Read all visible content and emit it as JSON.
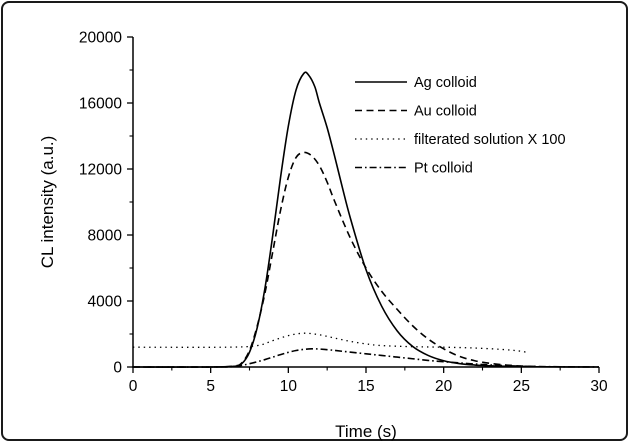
{
  "chart_data": {
    "type": "line",
    "title": "",
    "xlabel": "Time (s)",
    "ylabel": "CL intensity (a.u.)",
    "xlim": [
      0,
      30
    ],
    "ylim": [
      0,
      20000
    ],
    "xticks": [
      0,
      5,
      10,
      15,
      20,
      25,
      30
    ],
    "yticks": [
      0,
      4000,
      8000,
      12000,
      16000,
      20000
    ],
    "grid": false,
    "legend_position": "top-right",
    "series": [
      {
        "name": "Ag colloid",
        "line_style": "solid",
        "x": [
          0,
          5,
          6.5,
          7,
          7.5,
          8,
          8.5,
          9,
          9.5,
          10,
          10.5,
          11,
          11.3,
          11.7,
          12,
          12.5,
          13,
          13.5,
          14,
          15,
          16,
          17,
          18,
          19,
          20,
          21,
          22,
          23,
          24,
          25,
          26,
          27,
          28,
          30
        ],
        "y": [
          0,
          0,
          40,
          200,
          900,
          2400,
          4800,
          8000,
          11500,
          14600,
          16800,
          17800,
          17700,
          17000,
          16000,
          14500,
          12700,
          10800,
          9000,
          5900,
          3700,
          2200,
          1250,
          700,
          380,
          210,
          120,
          70,
          40,
          25,
          15,
          10,
          5,
          0
        ]
      },
      {
        "name": "Au colloid",
        "line_style": "dashed",
        "x": [
          0,
          5,
          6.5,
          7,
          7.5,
          8,
          8.5,
          9,
          9.5,
          10,
          10.5,
          11,
          11.5,
          12,
          12.5,
          13,
          14,
          15,
          16,
          17,
          18,
          19,
          20,
          21,
          22,
          23,
          24,
          25,
          26
        ],
        "y": [
          0,
          0,
          60,
          250,
          1000,
          2500,
          4500,
          7000,
          9500,
          11500,
          12700,
          13000,
          12800,
          12200,
          11200,
          10000,
          7800,
          6000,
          4600,
          3500,
          2500,
          1700,
          1100,
          650,
          380,
          220,
          120,
          60,
          30
        ]
      },
      {
        "name": "filterated solution X 100",
        "line_style": "dotted",
        "x": [
          0,
          6,
          8,
          9,
          10,
          11,
          12,
          13,
          14,
          15,
          16,
          18,
          20,
          22,
          24,
          25,
          25.5
        ],
        "y": [
          1200,
          1200,
          1300,
          1600,
          1900,
          2050,
          1950,
          1750,
          1550,
          1400,
          1300,
          1230,
          1200,
          1150,
          1050,
          950,
          850
        ]
      },
      {
        "name": "Pt colloid",
        "line_style": "dash-dot",
        "x": [
          0,
          5,
          6.5,
          7.5,
          8.5,
          9.5,
          10.5,
          11.5,
          12.5,
          13.5,
          15,
          16,
          17,
          18,
          19,
          20,
          22,
          24,
          26,
          28,
          30
        ],
        "y": [
          0,
          0,
          30,
          200,
          450,
          750,
          1000,
          1100,
          1050,
          950,
          800,
          700,
          600,
          500,
          400,
          320,
          180,
          80,
          30,
          10,
          0
        ]
      }
    ]
  }
}
